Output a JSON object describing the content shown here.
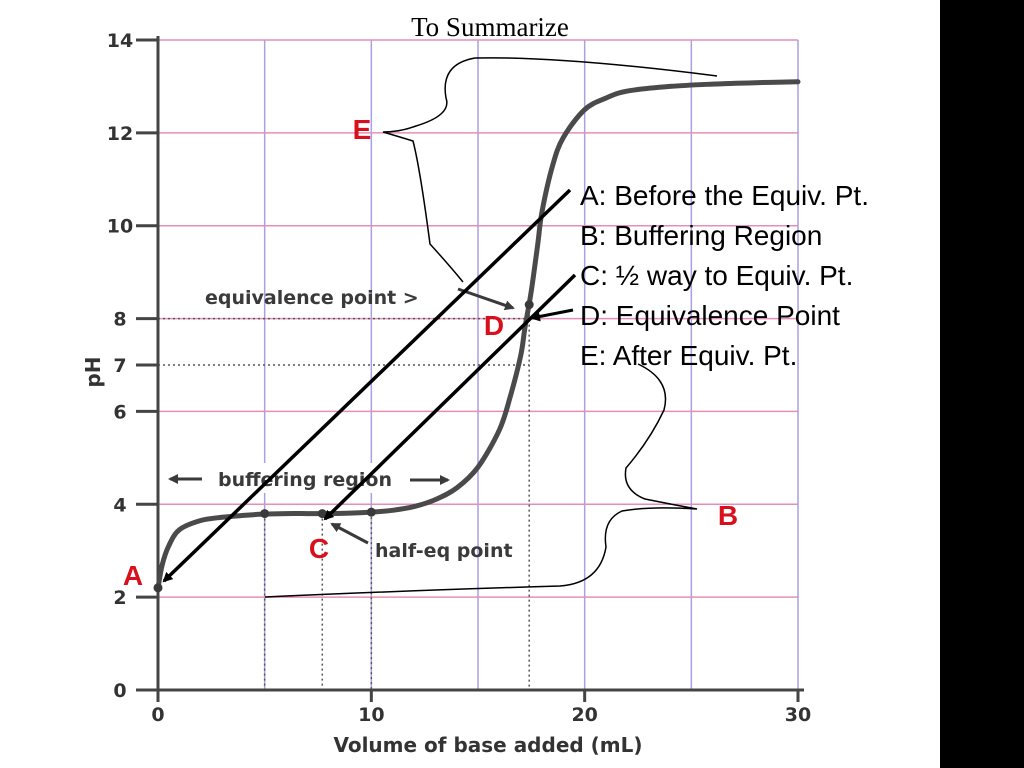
{
  "slide": {
    "title": "To Summarize"
  },
  "chart_data": {
    "type": "line",
    "xlabel": "Volume of base added (mL)",
    "ylabel": "pH",
    "xlim": [
      0,
      30
    ],
    "ylim": [
      0,
      14
    ],
    "x_ticks": [
      "0",
      "10",
      "20",
      "30"
    ],
    "y_ticks": [
      "0",
      "2",
      "4",
      "6",
      "7",
      "8",
      "10",
      "12",
      "14"
    ],
    "grid": true,
    "series": [
      {
        "x": [
          0,
          0.2,
          0.5,
          1,
          2,
          3,
          4,
          5,
          6,
          7,
          7.7,
          8,
          9,
          10,
          11,
          12,
          13,
          14,
          15,
          16,
          16.5,
          17,
          17.2,
          17.5,
          17.8,
          18,
          18.5,
          19,
          20,
          21,
          22,
          24,
          26,
          28,
          30
        ],
        "y": [
          2.2,
          2.7,
          3.1,
          3.45,
          3.65,
          3.72,
          3.76,
          3.79,
          3.8,
          3.8,
          3.8,
          3.8,
          3.81,
          3.83,
          3.87,
          3.95,
          4.1,
          4.35,
          4.8,
          5.6,
          6.3,
          7.2,
          7.8,
          8.6,
          9.6,
          10.3,
          11.3,
          11.9,
          12.5,
          12.75,
          12.9,
          13.0,
          13.05,
          13.08,
          13.1
        ]
      }
    ],
    "points": [
      {
        "x": 0,
        "y": 2.2
      },
      {
        "x": 5,
        "y": 3.8
      },
      {
        "x": 7.7,
        "y": 3.8
      },
      {
        "x": 10,
        "y": 3.83
      },
      {
        "x": 17.4,
        "y": 8.3
      }
    ],
    "reference_lines": [
      {
        "axis": "y",
        "value": 8,
        "to_x": 17.4
      },
      {
        "axis": "y",
        "value": 7,
        "to_x": 17.4
      },
      {
        "axis": "x",
        "value": 5,
        "from_y": 3.8
      },
      {
        "axis": "x",
        "value": 7.7,
        "from_y": 3.8
      },
      {
        "axis": "x",
        "value": 10,
        "from_y": 3.83
      },
      {
        "axis": "x",
        "value": 17.4,
        "from_y": 8.3
      }
    ],
    "annotations": {
      "equivalence_point": "equivalence point >",
      "buffering_region": "buffering region",
      "half_eq_point": "half-eq point"
    },
    "point_labels": [
      "A",
      "B",
      "C",
      "D",
      "E"
    ],
    "legend_lines": [
      "A: Before the Equiv. Pt.",
      "B: Buffering Region",
      "C: ½ way to Equiv. Pt.",
      "D: Equivalence Point",
      "E: After Equiv. Pt."
    ]
  },
  "colors": {
    "curve": "#4a4a4a",
    "grid_blue": "#a7a0e2",
    "grid_pink": "#e48fb8",
    "label_red": "#d8101c",
    "background": "#000000"
  }
}
